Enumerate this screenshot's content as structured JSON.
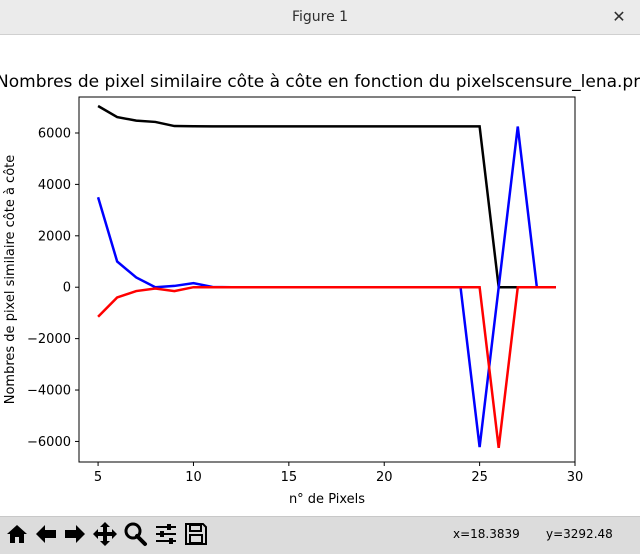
{
  "window": {
    "title": "Figure 1",
    "close_glyph": "✕"
  },
  "status": {
    "x": "x=18.3839",
    "y": "y=3292.48"
  },
  "toolbar": {
    "buttons": [
      {
        "icon": "home-icon"
      },
      {
        "icon": "back-arrow-icon"
      },
      {
        "icon": "forward-arrow-icon"
      },
      {
        "icon": "pan-move-icon"
      },
      {
        "icon": "zoom-magnifier-icon"
      },
      {
        "icon": "subplots-config-icon"
      },
      {
        "icon": "save-floppy-icon"
      }
    ]
  },
  "chart_data": {
    "type": "line",
    "title": "Nombres de pixel similaire côte à côte en fonction du pixelscensure_lena.pn",
    "xlabel": "n° de Pixels",
    "ylabel": "Nombres de pixel similaire côte à côte",
    "xlim": [
      4,
      30
    ],
    "ylim": [
      -6800,
      7400
    ],
    "xticks": [
      5,
      10,
      15,
      20,
      25,
      30
    ],
    "yticks": [
      -6000,
      -4000,
      -2000,
      0,
      2000,
      4000,
      6000
    ],
    "ytick_labels": [
      "−6000",
      "−4000",
      "−2000",
      "0",
      "2000",
      "4000",
      "6000"
    ],
    "grid": false,
    "series": [
      {
        "color": "#000000",
        "x": [
          5,
          6,
          7,
          8,
          9,
          10,
          11,
          12,
          13,
          14,
          15,
          16,
          17,
          18,
          19,
          20,
          21,
          22,
          23,
          24,
          25,
          26,
          27,
          28,
          29
        ],
        "y": [
          7050,
          6620,
          6480,
          6430,
          6270,
          6260,
          6255,
          6255,
          6255,
          6255,
          6255,
          6255,
          6255,
          6255,
          6255,
          6255,
          6255,
          6255,
          6255,
          6255,
          6255,
          0,
          0,
          0,
          0
        ]
      },
      {
        "color": "#0000ff",
        "x": [
          5,
          6,
          7,
          8,
          9,
          10,
          11,
          12,
          13,
          14,
          15,
          16,
          17,
          18,
          19,
          20,
          21,
          22,
          23,
          24,
          25,
          26,
          27,
          28,
          29
        ],
        "y": [
          3500,
          1000,
          380,
          0,
          50,
          160,
          10,
          0,
          0,
          0,
          0,
          0,
          0,
          0,
          0,
          0,
          0,
          0,
          0,
          0,
          -6220,
          0,
          6250,
          0,
          0
        ]
      },
      {
        "color": "#ff0000",
        "x": [
          5,
          6,
          7,
          8,
          9,
          10,
          11,
          12,
          13,
          14,
          15,
          16,
          17,
          18,
          19,
          20,
          21,
          22,
          23,
          24,
          25,
          26,
          27,
          28,
          29
        ],
        "y": [
          -1150,
          -400,
          -150,
          -50,
          -150,
          0,
          0,
          0,
          0,
          0,
          0,
          0,
          0,
          0,
          0,
          0,
          0,
          0,
          0,
          0,
          0,
          -6250,
          0,
          0,
          0
        ]
      }
    ]
  }
}
